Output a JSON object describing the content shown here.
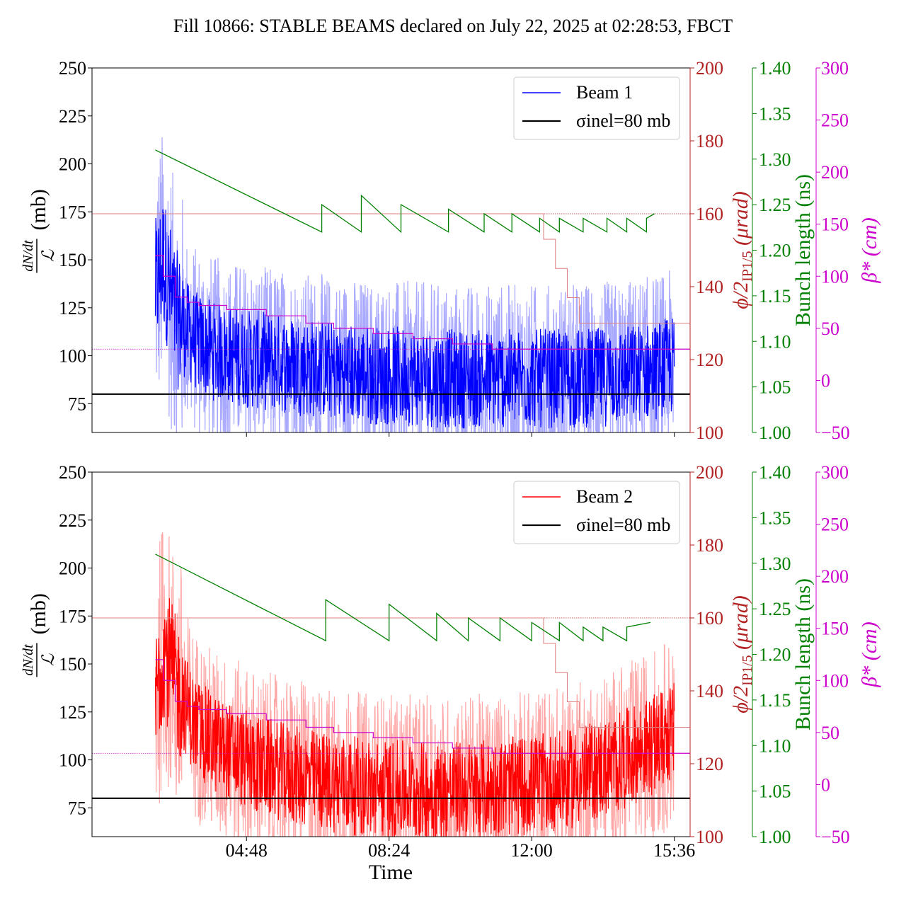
{
  "figure": {
    "title": "Fill 10866: STABLE BEAMS declared on July 22, 2025 at 02:28:53, FBCT",
    "x_axis_label": "Time",
    "x_tick_labels": [
      "04:48",
      "08:24",
      "12:00",
      "15:36"
    ]
  },
  "axis_labels": {
    "left_main": "(mb)",
    "left_frac_top": "dN/dt",
    "left_frac_bottom": "ℒ",
    "right_red": "ϕ/2",
    "right_red_sub": "IP1/5",
    "right_red_unit": "(μrad)",
    "right_green": "Bunch length (ns)",
    "right_magenta": "β* (cm)"
  },
  "colors": {
    "beam1": "#0000ff",
    "beam1_light": "#a8a8ff",
    "beam2": "#ff0000",
    "beam2_light": "#ffa8a8",
    "crossing_angle": "#b22222",
    "bunch_length": "#008000",
    "beta_star": "#cc00cc",
    "sigma_line": "#000000"
  },
  "chart_data": [
    {
      "type": "line",
      "panel": "top",
      "x_unit": "hours",
      "xlim": [
        0.9,
        16.0
      ],
      "x_ticks": [
        4.8,
        8.4,
        12.0,
        15.6
      ],
      "x_tick_labels": [
        "04:48",
        "08:24",
        "12:00",
        "15:36"
      ],
      "axes": {
        "left": {
          "ylim": [
            60,
            250
          ],
          "ticks": [
            75,
            100,
            125,
            150,
            175,
            200,
            225,
            250
          ]
        },
        "right_red": {
          "ylim": [
            100,
            200
          ],
          "ticks": [
            100,
            120,
            140,
            160,
            180,
            200
          ]
        },
        "right_green": {
          "ylim": [
            1.0,
            1.4
          ],
          "ticks": [
            "1.00",
            "1.05",
            "1.10",
            "1.15",
            "1.20",
            "1.25",
            "1.30",
            "1.35",
            "1.40"
          ]
        },
        "right_magenta": {
          "ylim": [
            -50,
            300
          ],
          "ticks": [
            -50,
            0,
            50,
            100,
            150,
            200,
            250,
            300
          ]
        }
      },
      "legend": {
        "placement": "top-right",
        "entries": [
          "Beam 1",
          "σinel=80 mb"
        ]
      },
      "series": [
        {
          "name": "Beam 1",
          "axis": "left",
          "role": "cross_section_mean",
          "x": [
            2.5,
            2.7,
            3.0,
            3.5,
            4.0,
            5.0,
            6.0,
            7.0,
            8.0,
            9.0,
            10.0,
            11.0,
            12.0,
            13.0,
            14.0,
            15.0,
            15.6
          ],
          "y": [
            135,
            150,
            120,
            108,
            102,
            98,
            95,
            92,
            90,
            89,
            88,
            88,
            88,
            88,
            89,
            92,
            95
          ]
        },
        {
          "name": "σinel=80 mb",
          "axis": "left",
          "role": "reference",
          "value": 80
        },
        {
          "axis": "right_red",
          "role": "crossing_angle",
          "x": [
            0.9,
            12.0,
            12.3,
            12.6,
            12.9,
            13.2,
            16.0
          ],
          "y": [
            160,
            160,
            153,
            145,
            137,
            130,
            130
          ]
        },
        {
          "axis": "right_green",
          "role": "bunch_length_sawtooth",
          "x": [
            2.5,
            6.7,
            6.7,
            7.7,
            7.7,
            8.7,
            8.7,
            9.9,
            9.9,
            10.8,
            10.8,
            11.5,
            11.5,
            12.2,
            12.2,
            12.7,
            12.7,
            13.3,
            13.3,
            13.9,
            13.9,
            14.4,
            14.4,
            14.9,
            14.9,
            15.1
          ],
          "y": [
            1.31,
            1.22,
            1.25,
            1.22,
            1.26,
            1.22,
            1.25,
            1.22,
            1.245,
            1.22,
            1.24,
            1.22,
            1.24,
            1.22,
            1.235,
            1.22,
            1.235,
            1.22,
            1.235,
            1.22,
            1.235,
            1.22,
            1.235,
            1.22,
            1.235,
            1.24
          ]
        },
        {
          "axis": "right_magenta",
          "role": "beta_star",
          "x": [
            2.5,
            2.7,
            3.0,
            3.3,
            3.6,
            4.3,
            5.3,
            6.3,
            7.0,
            8.0,
            9.0,
            10.0,
            11.0,
            16.0
          ],
          "y": [
            120,
            100,
            80,
            75,
            72,
            68,
            62,
            55,
            50,
            45,
            40,
            35,
            30,
            30
          ]
        },
        {
          "axis": "right_magenta",
          "role": "beta_star_reference",
          "value": 30
        },
        {
          "axis": "right_red",
          "role": "crossing_angle_reference",
          "value": 160
        }
      ]
    },
    {
      "type": "line",
      "panel": "bottom",
      "x_unit": "hours",
      "xlim": [
        0.9,
        16.0
      ],
      "x_ticks": [
        4.8,
        8.4,
        12.0,
        15.6
      ],
      "x_tick_labels": [
        "04:48",
        "08:24",
        "12:00",
        "15:36"
      ],
      "axes": {
        "left": {
          "ylim": [
            60,
            250
          ],
          "ticks": [
            75,
            100,
            125,
            150,
            175,
            200,
            225,
            250
          ]
        },
        "right_red": {
          "ylim": [
            100,
            200
          ],
          "ticks": [
            100,
            120,
            140,
            160,
            180,
            200
          ]
        },
        "right_green": {
          "ylim": [
            1.0,
            1.4
          ],
          "ticks": [
            "1.00",
            "1.05",
            "1.10",
            "1.15",
            "1.20",
            "1.25",
            "1.30",
            "1.35",
            "1.40"
          ]
        },
        "right_magenta": {
          "ylim": [
            -50,
            300
          ],
          "ticks": [
            -50,
            0,
            50,
            100,
            150,
            200,
            250,
            300
          ]
        }
      },
      "legend": {
        "placement": "top-right",
        "entries": [
          "Beam 2",
          "σinel=80 mb"
        ]
      },
      "series": [
        {
          "name": "Beam 2",
          "axis": "left",
          "role": "cross_section_mean",
          "x": [
            2.5,
            2.7,
            3.0,
            3.5,
            4.0,
            5.0,
            6.0,
            7.0,
            8.0,
            9.0,
            10.0,
            11.0,
            12.0,
            13.0,
            14.0,
            15.0,
            15.6
          ],
          "y": [
            130,
            160,
            140,
            118,
            108,
            98,
            92,
            88,
            85,
            84,
            84,
            85,
            87,
            90,
            97,
            107,
            115
          ]
        },
        {
          "name": "σinel=80 mb",
          "axis": "left",
          "role": "reference",
          "value": 80
        },
        {
          "axis": "right_red",
          "role": "crossing_angle",
          "x": [
            0.9,
            12.0,
            12.3,
            12.6,
            12.9,
            13.2,
            16.0
          ],
          "y": [
            160,
            160,
            153,
            145,
            137,
            130,
            130
          ]
        },
        {
          "axis": "right_green",
          "role": "bunch_length_sawtooth",
          "x": [
            2.5,
            6.8,
            6.8,
            8.4,
            8.4,
            9.6,
            9.6,
            10.4,
            10.4,
            11.2,
            11.2,
            12.0,
            12.0,
            12.7,
            12.7,
            13.3,
            13.3,
            13.8,
            13.8,
            14.4,
            14.4,
            15.0
          ],
          "y": [
            1.31,
            1.215,
            1.26,
            1.215,
            1.255,
            1.215,
            1.245,
            1.215,
            1.24,
            1.215,
            1.24,
            1.215,
            1.235,
            1.215,
            1.235,
            1.215,
            1.23,
            1.215,
            1.23,
            1.215,
            1.23,
            1.235
          ]
        },
        {
          "axis": "right_magenta",
          "role": "beta_star",
          "x": [
            2.5,
            2.7,
            3.0,
            3.3,
            3.6,
            4.3,
            5.3,
            6.3,
            7.0,
            8.0,
            9.0,
            10.0,
            11.0,
            16.0
          ],
          "y": [
            120,
            100,
            80,
            75,
            72,
            68,
            62,
            55,
            50,
            45,
            40,
            35,
            30,
            30
          ]
        },
        {
          "axis": "right_magenta",
          "role": "beta_star_reference",
          "value": 30
        },
        {
          "axis": "right_red",
          "role": "crossing_angle_reference",
          "value": 160
        }
      ]
    }
  ]
}
